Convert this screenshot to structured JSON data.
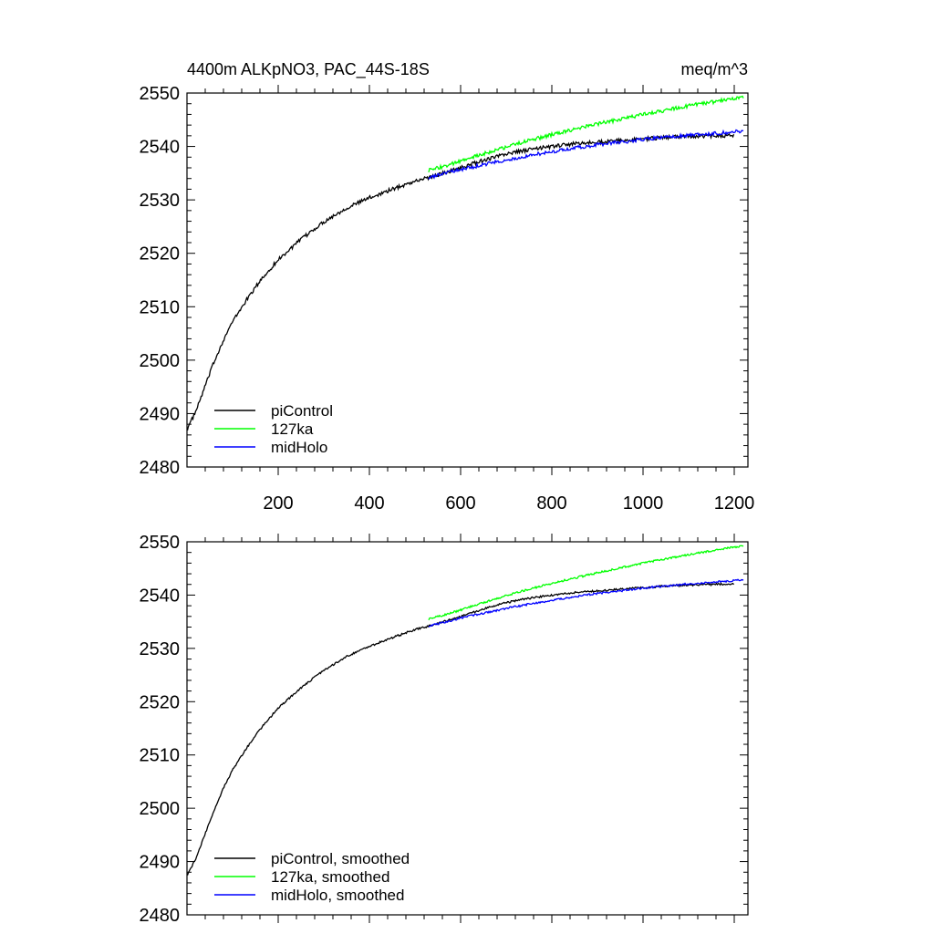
{
  "chart_data": [
    {
      "type": "line",
      "title": "4400m ALKpNO3, PAC_44S-18S",
      "units": "meq/m^3",
      "xlim": [
        0,
        1230
      ],
      "ylim": [
        2480,
        2550
      ],
      "x_ticks": [
        200,
        400,
        600,
        800,
        1000,
        1200
      ],
      "x_tick_labels": [
        "200",
        "400",
        "600",
        "800",
        "1000",
        "1200"
      ],
      "y_ticks": [
        2480,
        2490,
        2500,
        2510,
        2520,
        2530,
        2540,
        2550
      ],
      "y_tick_labels": [
        "2480",
        "2490",
        "2500",
        "2510",
        "2520",
        "2530",
        "2540",
        "2550"
      ],
      "grid": false,
      "legend_position": "bottom-left",
      "series": [
        {
          "name": "piControl",
          "color": "#000000",
          "x": [
            1,
            20,
            40,
            60,
            80,
            100,
            130,
            160,
            200,
            250,
            300,
            350,
            400,
            450,
            500,
            530,
            550,
            600,
            650,
            700,
            750,
            800,
            850,
            900,
            950,
            1000,
            1050,
            1100,
            1150,
            1200
          ],
          "y": [
            2487.2,
            2490.5,
            2495.2,
            2499.8,
            2503.8,
            2507.2,
            2511.2,
            2514.8,
            2518.8,
            2522.6,
            2525.9,
            2528.5,
            2530.4,
            2532.0,
            2533.5,
            2534.2,
            2534.7,
            2536.0,
            2537.4,
            2538.6,
            2539.4,
            2540.0,
            2540.5,
            2540.8,
            2541.1,
            2541.4,
            2541.7,
            2541.9,
            2542.0,
            2542.1
          ]
        },
        {
          "name": "127ka",
          "color": "#00ff00",
          "x": [
            530,
            560,
            600,
            650,
            700,
            750,
            800,
            850,
            900,
            950,
            1000,
            1050,
            1100,
            1150,
            1200,
            1220
          ],
          "y": [
            2535.5,
            2536.2,
            2537.2,
            2538.6,
            2539.9,
            2541.1,
            2542.2,
            2543.2,
            2544.2,
            2545.1,
            2546.0,
            2546.8,
            2547.6,
            2548.3,
            2549.0,
            2549.3
          ]
        },
        {
          "name": "midHolo",
          "color": "#0000ff",
          "x": [
            530,
            560,
            600,
            650,
            700,
            750,
            800,
            850,
            900,
            950,
            1000,
            1050,
            1100,
            1150,
            1200,
            1220
          ],
          "y": [
            2534.2,
            2534.8,
            2535.7,
            2536.6,
            2537.5,
            2538.3,
            2539.0,
            2539.7,
            2540.3,
            2540.8,
            2541.3,
            2541.7,
            2542.1,
            2542.4,
            2542.7,
            2542.9
          ]
        }
      ]
    },
    {
      "type": "line",
      "title": "",
      "units": "",
      "xlim": [
        0,
        1230
      ],
      "ylim": [
        2480,
        2550
      ],
      "x_ticks": [
        200,
        400,
        600,
        800,
        1000,
        1200
      ],
      "x_tick_labels": [],
      "y_ticks": [
        2480,
        2490,
        2500,
        2510,
        2520,
        2530,
        2540,
        2550
      ],
      "y_tick_labels": [
        "2480",
        "2490",
        "2500",
        "2510",
        "2520",
        "2530",
        "2540",
        "2550"
      ],
      "grid": false,
      "legend_position": "bottom-left",
      "series": [
        {
          "name": "piControl, smoothed",
          "color": "#000000",
          "x": [
            1,
            20,
            40,
            60,
            80,
            100,
            130,
            160,
            200,
            250,
            300,
            350,
            400,
            450,
            500,
            530,
            550,
            600,
            650,
            700,
            750,
            800,
            850,
            900,
            950,
            1000,
            1050,
            1100,
            1150,
            1200
          ],
          "y": [
            2487.6,
            2490.6,
            2495.2,
            2499.8,
            2503.8,
            2507.2,
            2511.2,
            2514.8,
            2518.8,
            2522.6,
            2525.9,
            2528.5,
            2530.4,
            2532.0,
            2533.5,
            2534.2,
            2534.7,
            2536.0,
            2537.4,
            2538.6,
            2539.4,
            2540.0,
            2540.5,
            2540.8,
            2541.1,
            2541.4,
            2541.7,
            2541.9,
            2542.0,
            2542.1
          ]
        },
        {
          "name": "127ka, smoothed",
          "color": "#00ff00",
          "x": [
            530,
            560,
            600,
            650,
            700,
            750,
            800,
            850,
            900,
            950,
            1000,
            1050,
            1100,
            1150,
            1200,
            1220
          ],
          "y": [
            2535.5,
            2536.2,
            2537.2,
            2538.6,
            2539.9,
            2541.1,
            2542.2,
            2543.2,
            2544.2,
            2545.1,
            2546.0,
            2546.8,
            2547.6,
            2548.3,
            2549.0,
            2549.3
          ]
        },
        {
          "name": "midHolo, smoothed",
          "color": "#0000ff",
          "x": [
            530,
            560,
            600,
            650,
            700,
            750,
            800,
            850,
            900,
            950,
            1000,
            1050,
            1100,
            1150,
            1200,
            1220
          ],
          "y": [
            2534.2,
            2534.8,
            2535.7,
            2536.6,
            2537.5,
            2538.3,
            2539.0,
            2539.7,
            2540.3,
            2540.8,
            2541.3,
            2541.7,
            2542.1,
            2542.4,
            2542.7,
            2542.9
          ]
        }
      ]
    }
  ]
}
